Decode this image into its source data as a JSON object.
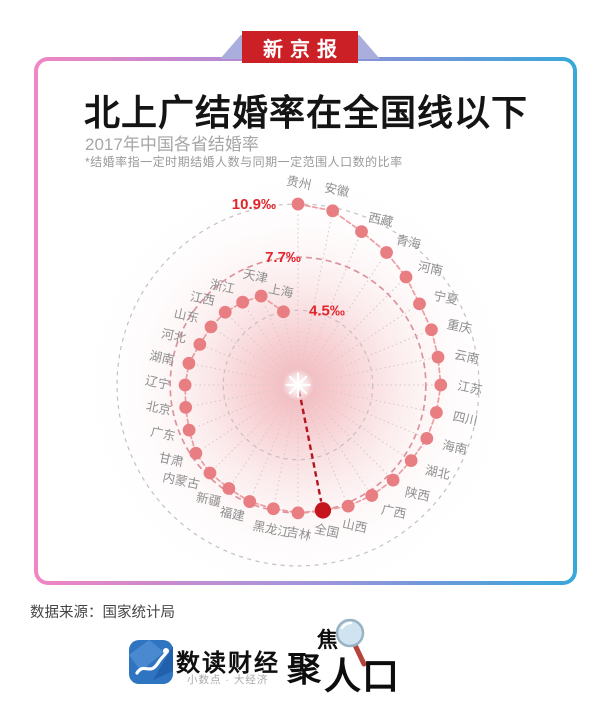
{
  "masthead": {
    "label": "新京报"
  },
  "header": {
    "title": "北上广结婚率在全国线以下",
    "subtitle": "2017年中国各省结婚率",
    "note": "*结婚率指一定时期结婚人数与同期一定范围人口数的比率"
  },
  "chart_data": {
    "type": "scatter",
    "subtype": "radial",
    "unit": "‰",
    "start_angle": "top",
    "direction": "clockwise",
    "radius_maps_to": "value",
    "rings": [
      {
        "value": 10.9,
        "label": "10.9‰"
      },
      {
        "value": 7.7,
        "label": "7.7‰"
      },
      {
        "value": 4.5,
        "label": "4.5‰"
      }
    ],
    "highlight_point": "全国",
    "points": [
      {
        "name": "贵州",
        "value": 10.9
      },
      {
        "name": "安徽",
        "value": 10.7
      },
      {
        "name": "西藏",
        "value": 10.0
      },
      {
        "name": "青海",
        "value": 9.6
      },
      {
        "name": "河南",
        "value": 9.2
      },
      {
        "name": "宁夏",
        "value": 8.8
      },
      {
        "name": "重庆",
        "value": 8.7
      },
      {
        "name": "云南",
        "value": 8.6
      },
      {
        "name": "江苏",
        "value": 8.6
      },
      {
        "name": "四川",
        "value": 8.5
      },
      {
        "name": "海南",
        "value": 8.4
      },
      {
        "name": "湖北",
        "value": 8.2
      },
      {
        "name": "陕西",
        "value": 8.1
      },
      {
        "name": "广西",
        "value": 8.0
      },
      {
        "name": "山西",
        "value": 7.9
      },
      {
        "name": "全国",
        "value": 7.7
      },
      {
        "name": "吉林",
        "value": 7.7
      },
      {
        "name": "黑龙江",
        "value": 7.6
      },
      {
        "name": "福建",
        "value": 7.6
      },
      {
        "name": "新疆",
        "value": 7.5
      },
      {
        "name": "内蒙古",
        "value": 7.5
      },
      {
        "name": "甘肃",
        "value": 7.4
      },
      {
        "name": "广东",
        "value": 7.1
      },
      {
        "name": "北京",
        "value": 6.9
      },
      {
        "name": "辽宁",
        "value": 6.8
      },
      {
        "name": "湖南",
        "value": 6.7
      },
      {
        "name": "河北",
        "value": 6.4
      },
      {
        "name": "山东",
        "value": 6.3
      },
      {
        "name": "江西",
        "value": 6.2
      },
      {
        "name": "浙江",
        "value": 6.0
      },
      {
        "name": "天津",
        "value": 5.8
      },
      {
        "name": "上海",
        "value": 4.5
      }
    ]
  },
  "footer": {
    "source": "数据来源：国家统计局",
    "brand1": {
      "name": "数读财经",
      "tagline": "小数点 · 大经济"
    },
    "brand2": {
      "part1": "聚",
      "part2": "焦",
      "part3": "人口"
    }
  },
  "colors": {
    "badge_red": "#cb2026",
    "wing_blue": "#a9aedd",
    "border_pink": "#f186c3",
    "border_blue": "#38a8da",
    "dot": "#e87e82",
    "dot_highlight": "#c5161d",
    "ring_label_red": "#e3242b",
    "connector_pink": "#ec9da1",
    "national_ring": "#dd939b",
    "grid_gray": "#c8bec1",
    "spoke": "#d8c8ca",
    "label_gray": "#8f8f8f",
    "national_line_red": "#b2161e"
  }
}
